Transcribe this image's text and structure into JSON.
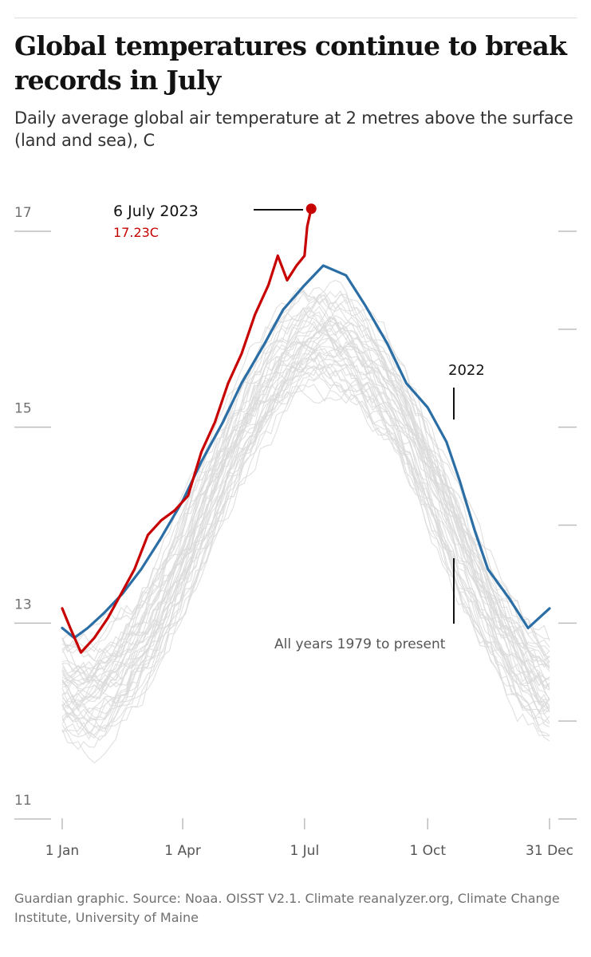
{
  "header": {
    "title": "Global temperatures continue to break records in July",
    "subtitle": "Daily average global air temperature at 2 metres above the surface (land and sea), C"
  },
  "footer": {
    "source": "Guardian graphic. Source: Noaa. OISST V2.1. Climate reanalyzer.org, Climate Change Institute, University of Maine"
  },
  "colors": {
    "record_2023": "#c70000",
    "year_2022": "#2b6ea5",
    "historical": "#dadada",
    "axis": "#bdbdbd",
    "annotation": "#121212"
  },
  "chart_data": {
    "type": "line",
    "x_unit": "day of year",
    "xlim": [
      "1 Jan",
      "31 Dec"
    ],
    "ylim": [
      11,
      17
    ],
    "y_ticks": [
      17,
      15,
      13,
      11
    ],
    "x_ticks": [
      "1 Jan",
      "1 Apr",
      "1 Jul",
      "1 Oct",
      "31 Dec"
    ],
    "grid": false,
    "annotations": {
      "record_date": "6 July 2023",
      "record_value": "17.23C",
      "year_2022": "2022",
      "historical": "All years 1979 to present"
    },
    "series": [
      {
        "name": "2023",
        "color": "#c70000",
        "x": [
          "1 Jan",
          "7 Jan",
          "15 Jan",
          "25 Jan",
          "4 Feb",
          "14 Feb",
          "24 Feb",
          "6 Mar",
          "16 Mar",
          "26 Mar",
          "5 Apr",
          "15 Apr",
          "25 Apr",
          "5 May",
          "15 May",
          "25 May",
          "4 Jun",
          "11 Jun",
          "18 Jun",
          "25 Jun",
          "1 Jul",
          "3 Jul",
          "6 Jul"
        ],
        "values": [
          13.15,
          12.95,
          12.7,
          12.85,
          13.05,
          13.3,
          13.55,
          13.9,
          14.05,
          14.15,
          14.3,
          14.75,
          15.05,
          15.45,
          15.75,
          16.15,
          16.45,
          16.75,
          16.5,
          16.65,
          16.75,
          17.05,
          17.23
        ]
      },
      {
        "name": "2022",
        "color": "#2b6ea5",
        "x": [
          "1 Jan",
          "10 Jan",
          "20 Jan",
          "1 Feb",
          "15 Feb",
          "1 Mar",
          "15 Mar",
          "1 Apr",
          "15 Apr",
          "1 May",
          "15 May",
          "1 Jun",
          "15 Jun",
          "1 Jul",
          "15 Jul",
          "1 Aug",
          "15 Aug",
          "1 Sep",
          "15 Sep",
          "1 Oct",
          "15 Oct",
          "25 Oct",
          "5 Nov",
          "15 Nov",
          "1 Dec",
          "15 Dec",
          "31 Dec"
        ],
        "values": [
          12.95,
          12.85,
          12.95,
          13.1,
          13.3,
          13.55,
          13.85,
          14.25,
          14.65,
          15.05,
          15.45,
          15.85,
          16.2,
          16.45,
          16.65,
          16.55,
          16.25,
          15.85,
          15.45,
          15.2,
          14.85,
          14.45,
          13.95,
          13.55,
          13.25,
          12.95,
          13.15
        ]
      }
    ]
  }
}
